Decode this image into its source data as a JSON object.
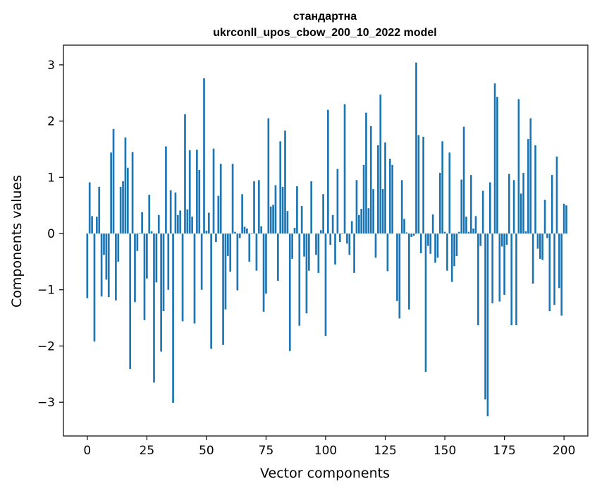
{
  "chart_data": {
    "type": "bar",
    "title_line1": "стандартна",
    "title_line2": "ukrconll_upos_cbow_200_10_2022 model",
    "xlabel": "Vector components",
    "ylabel": "Components values",
    "xlim": [
      -10,
      210
    ],
    "ylim": [
      -3.6,
      3.35
    ],
    "xticks": [
      0,
      25,
      50,
      75,
      100,
      125,
      150,
      175,
      200
    ],
    "yticks": [
      -3,
      -2,
      -1,
      0,
      1,
      2,
      3
    ],
    "ytick_labels": [
      "−3",
      "−2",
      "−1",
      "0",
      "1",
      "2",
      "3"
    ],
    "bar_color": "#1f77b4",
    "grid": false,
    "values": [
      -1.15,
      0.91,
      0.31,
      -1.92,
      0.3,
      0.83,
      -1.12,
      -0.38,
      -0.82,
      -1.13,
      1.44,
      1.86,
      -1.19,
      -0.5,
      0.83,
      0.93,
      1.71,
      1.17,
      -2.41,
      1.45,
      -1.22,
      -0.31,
      0.01,
      0.38,
      -1.54,
      -0.8,
      0.69,
      0.04,
      -2.65,
      -0.87,
      0.33,
      -2.1,
      -1.38,
      1.55,
      -1.0,
      0.77,
      -3.01,
      0.73,
      0.33,
      0.41,
      -1.56,
      2.12,
      0.43,
      1.48,
      0.3,
      -1.6,
      1.49,
      1.13,
      -1.0,
      2.76,
      0.05,
      0.37,
      -2.05,
      1.51,
      -0.15,
      0.67,
      1.24,
      -1.98,
      -1.35,
      -0.4,
      -0.68,
      1.24,
      0.03,
      -1.01,
      -0.08,
      0.7,
      0.12,
      0.09,
      -0.5,
      -0.01,
      0.93,
      -0.66,
      0.95,
      0.13,
      -1.39,
      -1.07,
      2.05,
      0.48,
      0.51,
      0.86,
      -0.84,
      1.64,
      0.83,
      1.83,
      0.4,
      -2.09,
      -0.45,
      0.1,
      0.84,
      -1.64,
      0.49,
      -0.41,
      -1.42,
      -0.66,
      0.93,
      0.0,
      -0.38,
      -0.7,
      0.06,
      0.7,
      -1.82,
      2.2,
      -0.2,
      0.33,
      -0.55,
      1.15,
      -0.15,
      -0.01,
      2.3,
      -0.18,
      -0.38,
      0.22,
      -0.7,
      0.95,
      0.33,
      0.44,
      1.22,
      2.15,
      0.45,
      1.91,
      0.79,
      -0.43,
      1.57,
      2.47,
      0.79,
      1.62,
      -0.67,
      1.33,
      1.22,
      0.0,
      -1.2,
      -1.51,
      0.95,
      0.26,
      0.02,
      -1.35,
      -0.06,
      -0.04,
      3.04,
      1.75,
      -0.35,
      1.72,
      -2.46,
      -0.22,
      -0.36,
      0.34,
      -0.52,
      -0.43,
      1.08,
      1.64,
      0.03,
      -0.66,
      1.44,
      -0.86,
      -0.58,
      -0.4,
      0.03,
      0.96,
      1.9,
      0.3,
      0.03,
      1.04,
      0.09,
      0.31,
      -1.63,
      -0.22,
      0.76,
      -2.95,
      -3.25,
      0.91,
      -1.24,
      2.67,
      2.43,
      -1.21,
      -0.23,
      -1.09,
      -0.2,
      1.06,
      -1.63,
      0.95,
      -1.63,
      2.39,
      0.71,
      1.08,
      0.04,
      1.68,
      2.05,
      -0.89,
      1.57,
      -0.27,
      -0.45,
      -0.47,
      0.6,
      -0.08,
      -1.38,
      1.04,
      -1.27,
      1.37,
      -0.97,
      -1.46,
      0.53,
      0.5
    ]
  }
}
